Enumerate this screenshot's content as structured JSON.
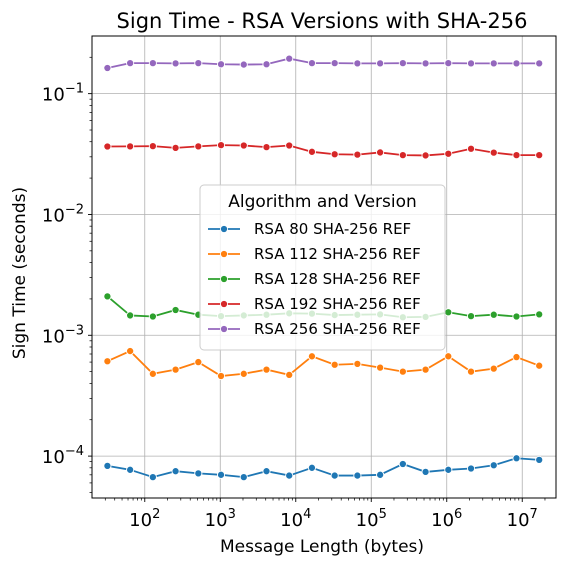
{
  "chart_data": {
    "type": "line",
    "title": "Sign Time - RSA Versions with SHA-256",
    "xlabel": "Message Length (bytes)",
    "ylabel": "Sign Time (seconds)",
    "xscale": "log",
    "yscale": "log",
    "xlim": [
      20,
      28000000
    ],
    "ylim": [
      4.5e-05,
      0.3
    ],
    "grid": true,
    "legend": {
      "title": "Algorithm and Version",
      "placement": "center-left"
    },
    "x_ticks": [
      {
        "value": 100,
        "base": "10",
        "exp": "2"
      },
      {
        "value": 1000,
        "base": "10",
        "exp": "3"
      },
      {
        "value": 10000,
        "base": "10",
        "exp": "4"
      },
      {
        "value": 100000,
        "base": "10",
        "exp": "5"
      },
      {
        "value": 1000000,
        "base": "10",
        "exp": "6"
      },
      {
        "value": 10000000,
        "base": "10",
        "exp": "7"
      }
    ],
    "y_ticks": [
      {
        "value": 0.0001,
        "base": "10",
        "exp": "−4"
      },
      {
        "value": 0.001,
        "base": "10",
        "exp": "−3"
      },
      {
        "value": 0.01,
        "base": "10",
        "exp": "−2"
      },
      {
        "value": 0.1,
        "base": "10",
        "exp": "−1"
      }
    ],
    "x": [
      32,
      64,
      128,
      256,
      512,
      1024,
      2048,
      4096,
      8192,
      16384,
      32768,
      65536,
      131072,
      262144,
      524288,
      1048576,
      2097152,
      4194304,
      8388608,
      16777216
    ],
    "series": [
      {
        "name": "RSA 80 SHA-256 REF",
        "color": "#1f77b4",
        "values": [
          8.3e-05,
          7.7e-05,
          6.7e-05,
          7.5e-05,
          7.2e-05,
          7e-05,
          6.7e-05,
          7.5e-05,
          6.9e-05,
          8e-05,
          6.9e-05,
          6.9e-05,
          7e-05,
          8.6e-05,
          7.4e-05,
          7.7e-05,
          7.9e-05,
          8.4e-05,
          9.6e-05,
          9.3e-05
        ]
      },
      {
        "name": "RSA 112 SHA-256 REF",
        "color": "#ff7f0e",
        "values": [
          0.00061,
          0.00074,
          0.00048,
          0.00052,
          0.0006,
          0.00046,
          0.00048,
          0.00052,
          0.00047,
          0.00067,
          0.00057,
          0.00058,
          0.00054,
          0.0005,
          0.00052,
          0.00067,
          0.0005,
          0.00053,
          0.00066,
          0.00056
        ]
      },
      {
        "name": "RSA 128 SHA-256 REF",
        "color": "#2ca02c",
        "values": [
          0.0021,
          0.00146,
          0.00143,
          0.00162,
          0.00148,
          0.00144,
          0.00146,
          0.00148,
          0.00152,
          0.00151,
          0.00147,
          0.00148,
          0.00149,
          0.00141,
          0.00142,
          0.00155,
          0.00144,
          0.00148,
          0.00143,
          0.00149
        ]
      },
      {
        "name": "RSA 192 SHA-256 REF",
        "color": "#d62728",
        "values": [
          0.0365,
          0.0366,
          0.0368,
          0.0356,
          0.0366,
          0.0375,
          0.0372,
          0.0361,
          0.0372,
          0.033,
          0.0315,
          0.0313,
          0.0326,
          0.031,
          0.0308,
          0.0318,
          0.035,
          0.0325,
          0.031,
          0.031
        ]
      },
      {
        "name": "RSA 256 SHA-256 REF",
        "color": "#9467bd",
        "values": [
          0.163,
          0.179,
          0.179,
          0.178,
          0.179,
          0.175,
          0.174,
          0.175,
          0.195,
          0.179,
          0.179,
          0.178,
          0.178,
          0.179,
          0.178,
          0.179,
          0.178,
          0.178,
          0.178,
          0.178
        ]
      }
    ]
  }
}
